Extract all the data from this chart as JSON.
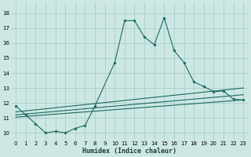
{
  "xlabel": "Humidex (Indice chaleur)",
  "ylabel": "",
  "bg_color": "#cde8e4",
  "grid_color": "#a8cdc9",
  "line_color": "#1a6b60",
  "xlim": [
    -0.5,
    23.5
  ],
  "ylim": [
    9.5,
    18.7
  ],
  "yticks": [
    10,
    11,
    12,
    13,
    14,
    15,
    16,
    17,
    18
  ],
  "xticks": [
    0,
    1,
    2,
    3,
    4,
    5,
    6,
    7,
    8,
    9,
    10,
    11,
    12,
    13,
    14,
    15,
    16,
    17,
    18,
    19,
    20,
    21,
    22,
    23
  ],
  "line1_x": [
    0,
    1,
    2,
    3,
    4,
    5,
    6,
    7,
    8,
    10,
    11,
    12,
    13,
    14,
    15,
    16,
    17,
    18,
    19,
    20,
    21,
    22,
    23
  ],
  "line1_y": [
    11.8,
    11.2,
    10.6,
    10.0,
    10.1,
    10.0,
    10.3,
    10.5,
    11.8,
    14.7,
    17.5,
    17.5,
    16.4,
    15.9,
    17.7,
    15.5,
    14.7,
    13.4,
    13.1,
    12.75,
    12.8,
    12.25,
    12.2
  ],
  "line2_x": [
    0,
    23
  ],
  "line2_y": [
    11.05,
    12.2
  ],
  "line3_x": [
    0,
    23
  ],
  "line3_y": [
    11.2,
    12.55
  ],
  "line4_x": [
    0,
    23
  ],
  "line4_y": [
    11.4,
    13.0
  ]
}
